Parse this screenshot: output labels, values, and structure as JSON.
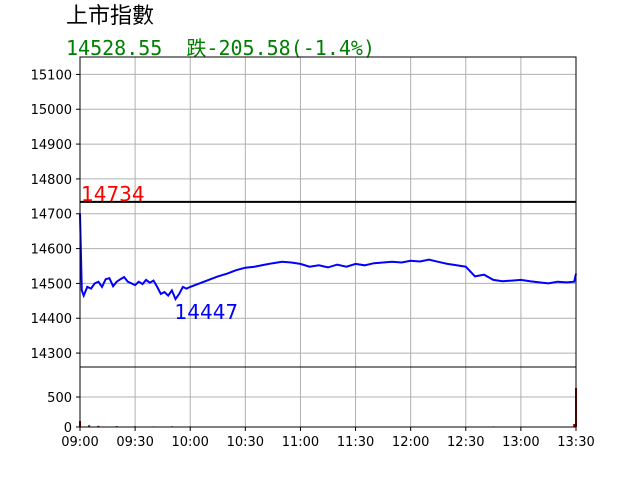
{
  "title": "上市指數",
  "subtitle": "14528.55  跌-205.58(-1.4%)",
  "colors": {
    "price_line": "#0000ff",
    "ref_line": "#000000",
    "ref_label": "#ff0000",
    "subtitle": "#008000",
    "volume": "#8b0000",
    "grid": "#b0b0b0"
  },
  "chart_data": [
    {
      "type": "line",
      "x_range": [
        "09:00",
        "13:30"
      ],
      "ylim": [
        14260,
        15150
      ],
      "y_ticks": [
        14300,
        14400,
        14500,
        14600,
        14700,
        14800,
        14900,
        15000,
        15100
      ],
      "grid": true,
      "reference": {
        "value": 14734,
        "label": "14734"
      },
      "low": {
        "value": 14447,
        "label": "14447",
        "time": "09:52"
      },
      "series": [
        {
          "time": [
            "09:00",
            "09:01",
            "09:02",
            "09:04",
            "09:06",
            "09:08",
            "09:10",
            "09:12",
            "09:14",
            "09:16",
            "09:18",
            "09:20",
            "09:22",
            "09:24",
            "09:26",
            "09:28",
            "09:30",
            "09:32",
            "09:34",
            "09:36",
            "09:38",
            "09:40",
            "09:42",
            "09:44",
            "09:46",
            "09:48",
            "09:50",
            "09:52",
            "09:54",
            "09:56",
            "09:58",
            "10:00",
            "10:05",
            "10:10",
            "10:15",
            "10:20",
            "10:25",
            "10:30",
            "10:35",
            "10:40",
            "10:45",
            "10:50",
            "10:55",
            "11:00",
            "11:05",
            "11:10",
            "11:15",
            "11:20",
            "11:25",
            "11:30",
            "11:35",
            "11:40",
            "11:45",
            "11:50",
            "11:55",
            "12:00",
            "12:05",
            "12:10",
            "12:15",
            "12:20",
            "12:25",
            "12:30",
            "12:35",
            "12:40",
            "12:45",
            "12:50",
            "12:55",
            "13:00",
            "13:05",
            "13:10",
            "13:15",
            "13:20",
            "13:25",
            "13:29",
            "13:30"
          ],
          "values": [
            14700,
            14480,
            14465,
            14490,
            14485,
            14500,
            14505,
            14490,
            14512,
            14515,
            14492,
            14505,
            14512,
            14518,
            14505,
            14500,
            14495,
            14505,
            14498,
            14510,
            14502,
            14508,
            14490,
            14470,
            14475,
            14465,
            14480,
            14455,
            14470,
            14490,
            14485,
            14490,
            14500,
            14510,
            14520,
            14528,
            14538,
            14545,
            14548,
            14553,
            14558,
            14562,
            14560,
            14556,
            14548,
            14552,
            14546,
            14554,
            14548,
            14556,
            14552,
            14558,
            14560,
            14562,
            14560,
            14565,
            14563,
            14568,
            14562,
            14556,
            14552,
            14548,
            14520,
            14525,
            14510,
            14506,
            14508,
            14510,
            14506,
            14503,
            14500,
            14505,
            14503,
            14505,
            14528
          ]
        }
      ]
    },
    {
      "type": "bar",
      "x_range": [
        "09:00",
        "13:30"
      ],
      "ylim": [
        0,
        1000
      ],
      "y_ticks": [
        0,
        500
      ],
      "values": {
        "time": [
          "09:00",
          "09:05",
          "09:10",
          "09:20",
          "09:30",
          "09:40",
          "09:50",
          "10:00",
          "10:15",
          "10:30",
          "10:45",
          "11:00",
          "11:15",
          "11:30",
          "11:45",
          "12:00",
          "12:15",
          "12:30",
          "12:45",
          "13:00",
          "13:15",
          "13:25",
          "13:29",
          "13:30"
        ],
        "volume": [
          100,
          30,
          20,
          15,
          12,
          10,
          12,
          10,
          8,
          6,
          6,
          5,
          5,
          4,
          5,
          4,
          4,
          5,
          10,
          8,
          6,
          5,
          50,
          650
        ]
      }
    }
  ],
  "x_ticks": [
    "09:00",
    "09:30",
    "10:00",
    "10:30",
    "11:00",
    "11:30",
    "12:00",
    "12:30",
    "13:00",
    "13:30"
  ]
}
